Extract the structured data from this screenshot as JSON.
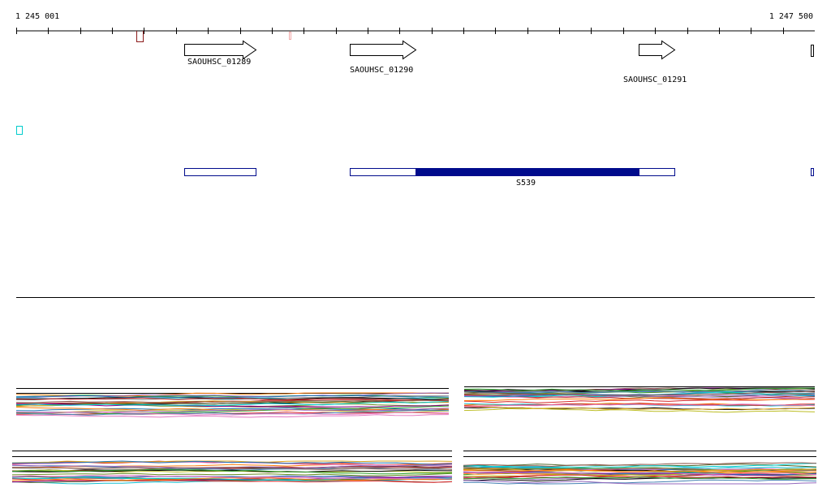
{
  "ruler": {
    "start_label": "1 245 001",
    "end_label": "1 247 500"
  },
  "genes": [
    {
      "label": "SAOUHSC_01289"
    },
    {
      "label": "SAOUHSC_01290"
    },
    {
      "label": "SAOUHSC_01291"
    }
  ],
  "feature": {
    "label": "S539",
    "fill_color": "#000b8c",
    "outline_color": "#000b8c"
  },
  "colors": {
    "ruler": "#000000",
    "gene_arrow_outline": "#000000",
    "marker_dark_red": "#8b1a1a",
    "marker_pink": "#f2a8a8",
    "marker_cyan": "#00cccc",
    "feature_box_outline": "#000b8c"
  },
  "expression_palette": [
    "#000000",
    "#d62728",
    "#2ca02c",
    "#1f77b4",
    "#ff7f0e",
    "#9467bd",
    "#8c564b",
    "#e377c2",
    "#7f7f7f",
    "#bcbd22",
    "#17becf",
    "#6b8e23",
    "#b22222",
    "#4682b4",
    "#daa520",
    "#556b2f",
    "#8b008b",
    "#00ced1"
  ]
}
